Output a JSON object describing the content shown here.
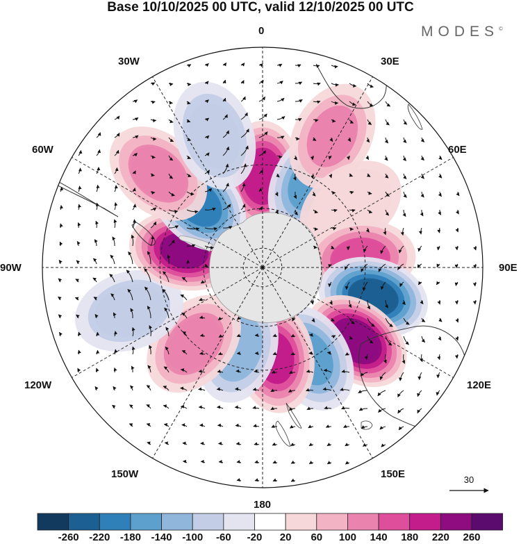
{
  "title": "Base 10/10/2025 00 UTC, valid 12/10/2025 00 UTC",
  "brand": "MODES",
  "brand_mark": "©",
  "longitude_labels": {
    "lon_0": "0",
    "lon_30e": "30E",
    "lon_60e": "60E",
    "lon_90e": "90E",
    "lon_120e": "120E",
    "lon_150e": "150E",
    "lon_180": "180",
    "lon_150w": "150W",
    "lon_120w": "120W",
    "lon_90w": "90W",
    "lon_60w": "60W",
    "lon_30w": "30W"
  },
  "reference_vector": {
    "label": "30"
  },
  "colorbar": {
    "ticks": [
      "-260",
      "-220",
      "-180",
      "-140",
      "-100",
      "-60",
      "-20",
      "20",
      "60",
      "100",
      "140",
      "180",
      "220",
      "260"
    ],
    "colors": [
      "#123a5e",
      "#1c5f92",
      "#2f80b8",
      "#5ea0cd",
      "#90b6dc",
      "#c3cde6",
      "#e4e4f0",
      "#ffffff",
      "#f6d8da",
      "#f2b3c4",
      "#ea84ae",
      "#de4e9b",
      "#c21d8a",
      "#8e0b80",
      "#5b0a6e"
    ]
  },
  "map": {
    "projection": "south polar stereographic",
    "land_color": "#e6e6e6",
    "anomalies": [
      {
        "lon": 0,
        "lat": -45,
        "value": 200
      },
      {
        "lon": 30,
        "lat": -42,
        "value": -150
      },
      {
        "lon": 28,
        "lat": -22,
        "value": 100
      },
      {
        "lon": 55,
        "lat": -38,
        "value": 40
      },
      {
        "lon": 85,
        "lat": -42,
        "value": 150
      },
      {
        "lon": 105,
        "lat": -35,
        "value": -230
      },
      {
        "lon": 128,
        "lat": -33,
        "value": 250
      },
      {
        "lon": 152,
        "lat": -40,
        "value": -140
      },
      {
        "lon": 172,
        "lat": -45,
        "value": 180
      },
      {
        "lon": -163,
        "lat": -48,
        "value": -110
      },
      {
        "lon": -138,
        "lat": -40,
        "value": 120
      },
      {
        "lon": -108,
        "lat": -25,
        "value": -80
      },
      {
        "lon": -78,
        "lat": -50,
        "value": 220
      },
      {
        "lon": -45,
        "lat": -45,
        "value": -190
      },
      {
        "lon": -48,
        "lat": -25,
        "value": 110
      },
      {
        "lon": -20,
        "lat": -25,
        "value": -90
      }
    ]
  }
}
